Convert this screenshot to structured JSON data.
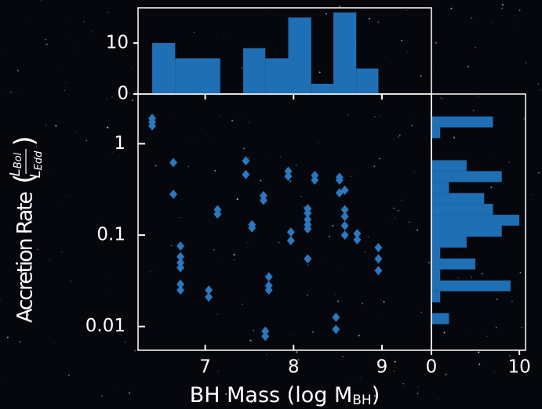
{
  "chart_data": [
    {
      "type": "scatter",
      "x_label": "BH Mass (log M",
      "x_label_sub": "BH",
      "x_label_end": ")",
      "y_label": "Accretion Rate",
      "y_label_fraction": {
        "numerator": "L",
        "numerator_sub": "Bol",
        "denominator": "L",
        "denominator_sub": "Edd"
      },
      "color": "#2a78bf",
      "marker": "diamond",
      "ylog": true,
      "x": [
        6.4,
        6.4,
        6.4,
        6.64,
        6.64,
        6.72,
        6.72,
        6.72,
        6.72,
        6.72,
        6.72,
        7.04,
        7.04,
        7.14,
        7.14,
        7.46,
        7.46,
        7.53,
        7.53,
        7.66,
        7.66,
        7.68,
        7.68,
        7.72,
        7.72,
        7.72,
        7.94,
        7.94,
        7.97,
        7.97,
        8.16,
        8.16,
        8.16,
        8.16,
        8.16,
        8.16,
        8.24,
        8.24,
        8.48,
        8.48,
        8.52,
        8.52,
        8.52,
        8.58,
        8.58,
        8.58,
        8.58,
        8.58,
        8.72,
        8.72,
        8.96,
        8.96,
        8.96
      ],
      "values": [
        1.9,
        1.73,
        1.57,
        0.62,
        0.28,
        0.076,
        0.058,
        0.05,
        0.044,
        0.029,
        0.025,
        0.025,
        0.021,
        0.19,
        0.17,
        0.65,
        0.46,
        0.13,
        0.12,
        0.27,
        0.24,
        0.0089,
        0.0078,
        0.035,
        0.028,
        0.025,
        0.5,
        0.44,
        0.108,
        0.087,
        0.195,
        0.174,
        0.148,
        0.13,
        0.117,
        0.055,
        0.45,
        0.4,
        0.0126,
        0.0093,
        0.43,
        0.4,
        0.29,
        0.31,
        0.19,
        0.16,
        0.127,
        0.1,
        0.104,
        0.089,
        0.073,
        0.055,
        0.041
      ],
      "xlim": [
        6.24,
        9.56
      ],
      "xticks": [
        7,
        8,
        9
      ],
      "ylim": [
        0.0055,
        3.5
      ],
      "yticks": [
        0.01,
        0.1,
        1
      ]
    },
    {
      "type": "histogram",
      "orientation": "vertical",
      "color": "#1f6fb5",
      "bins": [
        6.4,
        6.66,
        6.91,
        7.17,
        7.43,
        7.68,
        7.94,
        8.2,
        8.45,
        8.71,
        8.96
      ],
      "values": [
        10,
        7,
        7,
        0,
        9,
        7,
        15,
        2,
        16,
        5
      ],
      "xlim": [
        6.24,
        9.56
      ],
      "ylim": [
        0,
        16.9
      ],
      "yticks": [
        0,
        10
      ]
    },
    {
      "type": "histogram",
      "orientation": "horizontal",
      "color": "#1f6fb5",
      "ylog": true,
      "bins": [
        0.00805,
        0.0106,
        0.014,
        0.0184,
        0.0243,
        0.0319,
        0.0421,
        0.0555,
        0.073,
        0.0962,
        0.127,
        0.167,
        0.22,
        0.289,
        0.381,
        0.502,
        0.661,
        0.871,
        1.15,
        1.51,
        1.99
      ],
      "values": [
        0,
        2,
        0,
        1,
        9,
        1,
        5,
        1,
        4,
        8,
        10,
        7,
        6,
        2,
        8,
        4,
        0,
        0,
        1,
        7
      ],
      "xlim": [
        0,
        10.7
      ],
      "xticks": [
        0,
        10
      ],
      "ylim": [
        0.0055,
        3.5
      ]
    }
  ]
}
